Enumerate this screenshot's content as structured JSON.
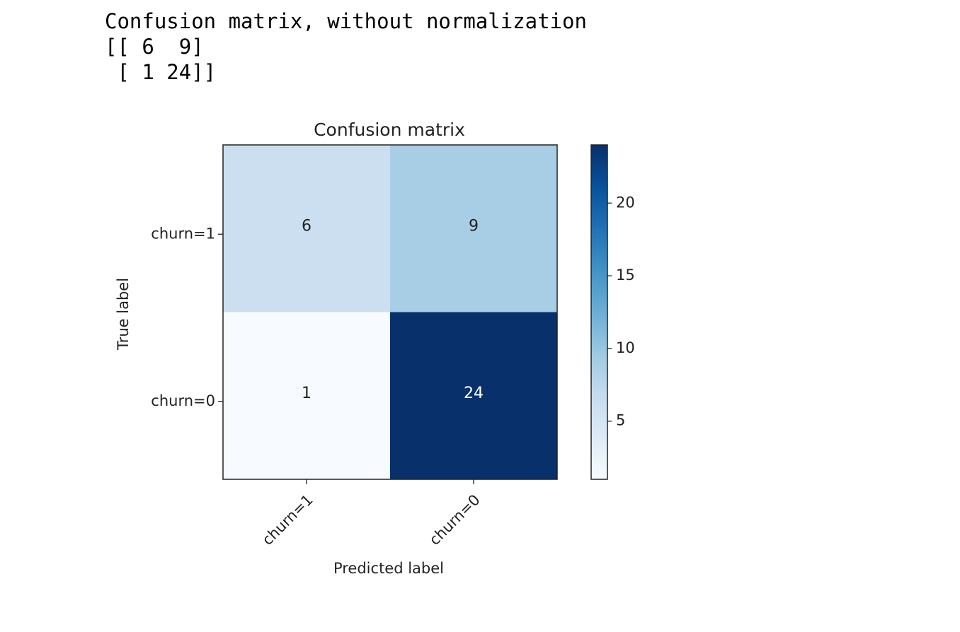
{
  "console_output": {
    "line1": "Confusion matrix, without normalization",
    "line2": "[[ 6  9]",
    "line3": " [ 1 24]]"
  },
  "chart_data": {
    "type": "heatmap",
    "title": "Confusion matrix",
    "xlabel": "Predicted label",
    "ylabel": "True label",
    "x_categories": [
      "churn=1",
      "churn=0"
    ],
    "y_categories": [
      "churn=1",
      "churn=0"
    ],
    "values": [
      [
        6,
        9
      ],
      [
        1,
        24
      ]
    ],
    "colormap": "Blues",
    "colorbar": {
      "min": 1,
      "max": 24,
      "ticks": [
        5,
        10,
        15,
        20
      ]
    },
    "grid": false
  }
}
